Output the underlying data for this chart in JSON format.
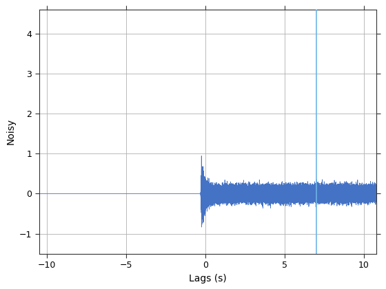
{
  "xlabel": "Lags (s)",
  "ylabel": "Noisy",
  "xlim": [
    -10.5,
    10.8
  ],
  "ylim": [
    -1.5,
    4.6
  ],
  "xticks": [
    -10,
    -5,
    0,
    5,
    10
  ],
  "yticks": [
    -1,
    0,
    1,
    2,
    3,
    4
  ],
  "line_color": "#4472C4",
  "vline_x": 7.0,
  "vline_color": "#6EB4E8",
  "signal_start": -0.3,
  "signal_end": 10.8,
  "noise_amplitude_peak": 0.9,
  "noise_amplitude_body": 0.38,
  "peak_duration": 0.8,
  "background_color": "#ffffff",
  "grid_color": "#b0b0b0",
  "sample_rate": 8000,
  "seed": 12345,
  "figsize": [
    5.6,
    4.2
  ],
  "dpi": 100
}
